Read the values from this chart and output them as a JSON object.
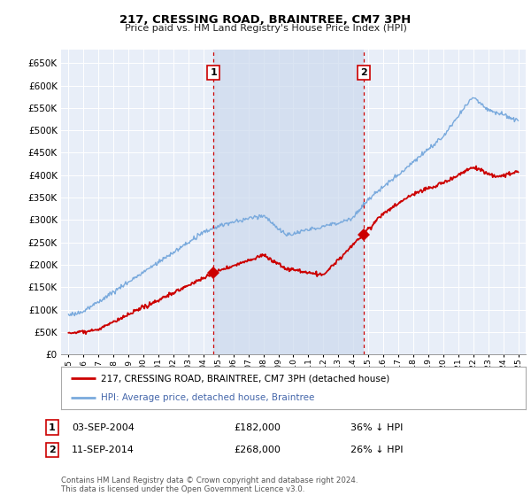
{
  "title": "217, CRESSING ROAD, BRAINTREE, CM7 3PH",
  "subtitle": "Price paid vs. HM Land Registry's House Price Index (HPI)",
  "legend_line1": "217, CRESSING ROAD, BRAINTREE, CM7 3PH (detached house)",
  "legend_line2": "HPI: Average price, detached house, Braintree",
  "table_row1_num": "1",
  "table_row1_date": "03-SEP-2004",
  "table_row1_price": "£182,000",
  "table_row1_hpi": "36% ↓ HPI",
  "table_row2_num": "2",
  "table_row2_date": "11-SEP-2014",
  "table_row2_price": "£268,000",
  "table_row2_hpi": "26% ↓ HPI",
  "footnote": "Contains HM Land Registry data © Crown copyright and database right 2024.\nThis data is licensed under the Open Government Licence v3.0.",
  "sale1_year": 2004.67,
  "sale1_price": 182000,
  "sale2_year": 2014.67,
  "sale2_price": 268000,
  "vline1_year": 2004.67,
  "vline2_year": 2014.67,
  "ylim_min": 0,
  "ylim_max": 680000,
  "xlim_min": 1994.5,
  "xlim_max": 2025.5,
  "red_color": "#cc0000",
  "blue_color": "#7aaadd",
  "vline_color": "#cc0000",
  "bg_plot": "#e8eef8",
  "shade_color": "#ccd9ee",
  "grid_color": "#ffffff"
}
